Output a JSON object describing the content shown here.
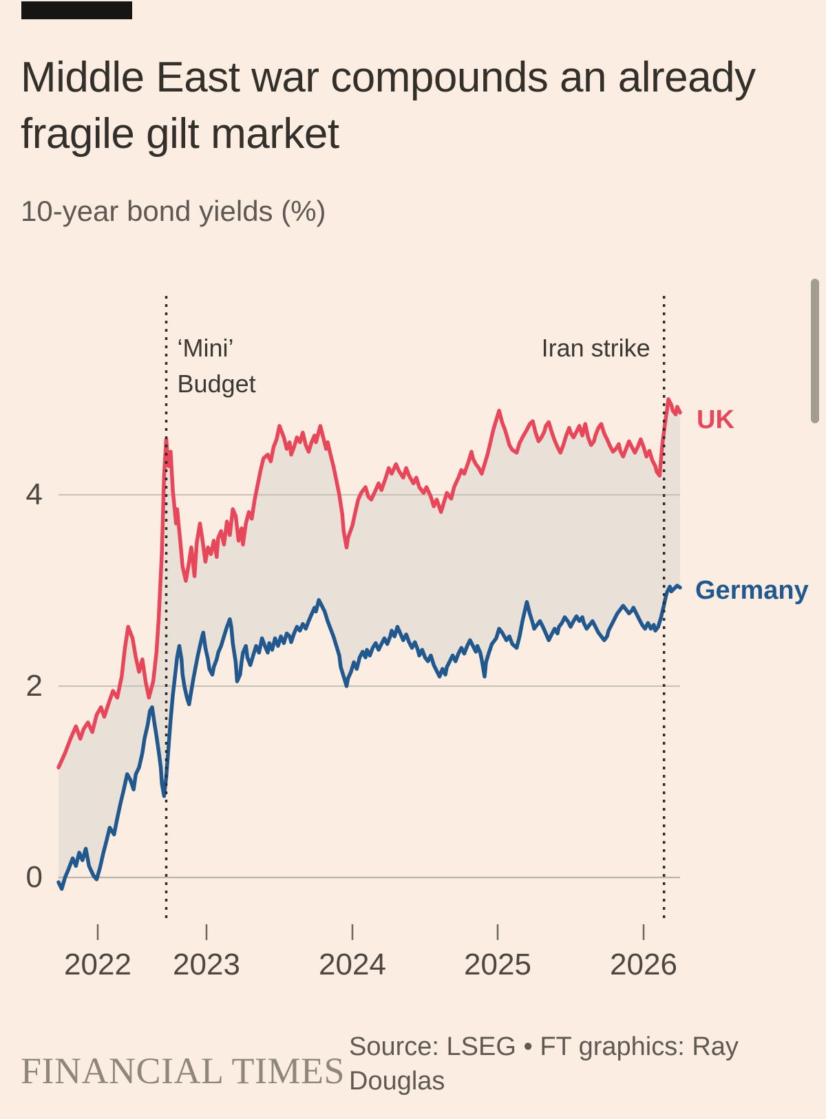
{
  "window": {
    "background": "#FBEDE1",
    "top_bar_color": "#171514",
    "scrollbar_color": "#A39C90"
  },
  "header": {
    "title": "Middle East war compounds an already fragile gilt market",
    "subtitle": "10-year bond yields (%)"
  },
  "footer": {
    "brand": "FINANCIAL TIMES",
    "source": "Source: LSEG • FT graphics: Ray Douglas"
  },
  "chart_data": {
    "type": "line",
    "title": "Middle East war compounds an already fragile gilt market",
    "subtitle": "10-year bond yields (%)",
    "xlabel": "",
    "ylabel": "10-year bond yield (%)",
    "x_axis": {
      "ticks": [
        2022,
        2023,
        2024,
        2025,
        2026
      ],
      "range": [
        2021.64,
        2026.25
      ]
    },
    "y_axis": {
      "ticks": [
        0,
        2,
        4
      ],
      "range": [
        -0.45,
        5.45
      ],
      "unit": "%"
    },
    "grid": "horizontal",
    "legend_position": "right-of-line-ends",
    "fill_between": {
      "upper": "UK",
      "lower": "Germany",
      "color": "#E9E1D7"
    },
    "annotations": [
      {
        "label": "‘Mini’ Budget",
        "x": 2022.63,
        "line_style": "dotted"
      },
      {
        "label": "Iran strike",
        "x": 2026.14,
        "line_style": "dotted"
      }
    ],
    "series": [
      {
        "name": "UK",
        "color": "#E8465A",
        "x": [
          2021.64,
          2021.7,
          2021.75,
          2021.8,
          2021.84,
          2021.87,
          2021.91,
          2021.95,
          2021.99,
          2022.03,
          2022.06,
          2022.1,
          2022.14,
          2022.18,
          2022.22,
          2022.25,
          2022.28,
          2022.32,
          2022.35,
          2022.38,
          2022.41,
          2022.44,
          2022.47,
          2022.51,
          2022.54,
          2022.56,
          2022.59,
          2022.61,
          2022.63,
          2022.65,
          2022.67,
          2022.69,
          2022.72,
          2022.73,
          2022.76,
          2022.78,
          2022.81,
          2022.84,
          2022.86,
          2022.89,
          2022.91,
          2022.94,
          2022.96,
          2022.99,
          2023.01,
          2023.03,
          2023.05,
          2023.07,
          2023.08,
          2023.1,
          2023.12,
          2023.14,
          2023.16,
          2023.18,
          2023.2,
          2023.22,
          2023.24,
          2023.25,
          2023.27,
          2023.29,
          2023.31,
          2023.33,
          2023.35,
          2023.37,
          2023.39,
          2023.42,
          2023.44,
          2023.46,
          2023.48,
          2023.5,
          2023.53,
          2023.55,
          2023.57,
          2023.58,
          2023.6,
          2023.62,
          2023.64,
          2023.66,
          2023.68,
          2023.7,
          2023.72,
          2023.74,
          2023.75,
          2023.78,
          2023.8,
          2023.82,
          2023.83,
          2023.85,
          2023.87,
          2023.89,
          2023.91,
          2023.93,
          2023.94,
          2023.96,
          2023.97,
          2024.0,
          2024.02,
          2024.04,
          2024.06,
          2024.09,
          2024.11,
          2024.13,
          2024.16,
          2024.18,
          2024.2,
          2024.23,
          2024.25,
          2024.27,
          2024.3,
          2024.32,
          2024.35,
          2024.37,
          2024.39,
          2024.42,
          2024.44,
          2024.46,
          2024.49,
          2024.51,
          2024.54,
          2024.56,
          2024.58,
          2024.61,
          2024.63,
          2024.65,
          2024.68,
          2024.7,
          2024.73,
          2024.75,
          2024.77,
          2024.8,
          2024.82,
          2024.83,
          2024.85,
          2024.87,
          2024.89,
          2024.91,
          2024.93,
          2024.95,
          2024.97,
          2024.99,
          2025.01,
          2025.03,
          2025.05,
          2025.07,
          2025.08,
          2025.1,
          2025.13,
          2025.15,
          2025.17,
          2025.2,
          2025.22,
          2025.24,
          2025.26,
          2025.28,
          2025.3,
          2025.32,
          2025.33,
          2025.35,
          2025.37,
          2025.39,
          2025.41,
          2025.43,
          2025.45,
          2025.47,
          2025.49,
          2025.5,
          2025.52,
          2025.54,
          2025.56,
          2025.58,
          2025.6,
          2025.62,
          2025.64,
          2025.66,
          2025.67,
          2025.69,
          2025.71,
          2025.73,
          2025.75,
          2025.77,
          2025.79,
          2025.81,
          2025.83,
          2025.84,
          2025.86,
          2025.88,
          2025.9,
          2025.92,
          2025.94,
          2025.96,
          2025.98,
          2026.0,
          2026.02,
          2026.04,
          2026.06,
          2026.08,
          2026.09,
          2026.11,
          2026.12,
          2026.13,
          2026.15,
          2026.16,
          2026.17,
          2026.19,
          2026.2,
          2026.22,
          2026.23,
          2026.25
        ],
        "values": [
          1.15,
          1.3,
          1.45,
          1.58,
          1.45,
          1.55,
          1.62,
          1.52,
          1.7,
          1.78,
          1.68,
          1.82,
          1.95,
          1.88,
          2.1,
          2.4,
          2.62,
          2.5,
          2.3,
          2.15,
          2.28,
          2.05,
          1.88,
          2.05,
          2.35,
          2.7,
          3.4,
          4.2,
          4.58,
          4.3,
          4.45,
          4.05,
          3.7,
          3.85,
          3.5,
          3.25,
          3.1,
          3.3,
          3.45,
          3.15,
          3.5,
          3.7,
          3.55,
          3.3,
          3.45,
          3.38,
          3.52,
          3.35,
          3.55,
          3.62,
          3.48,
          3.72,
          3.58,
          3.85,
          3.78,
          3.52,
          3.65,
          3.48,
          3.7,
          3.82,
          3.75,
          3.95,
          4.1,
          4.25,
          4.38,
          4.42,
          4.35,
          4.5,
          4.58,
          4.72,
          4.6,
          4.48,
          4.55,
          4.42,
          4.5,
          4.6,
          4.55,
          4.65,
          4.52,
          4.45,
          4.55,
          4.62,
          4.55,
          4.72,
          4.6,
          4.48,
          4.55,
          4.42,
          4.3,
          4.15,
          4.0,
          3.8,
          3.62,
          3.45,
          3.55,
          3.68,
          3.82,
          3.95,
          4.02,
          4.08,
          3.98,
          3.95,
          4.05,
          4.12,
          4.05,
          4.18,
          4.28,
          4.22,
          4.32,
          4.25,
          4.18,
          4.28,
          4.2,
          4.12,
          4.18,
          4.08,
          4.02,
          4.08,
          3.98,
          3.88,
          3.95,
          3.82,
          3.92,
          4.02,
          3.96,
          4.08,
          4.18,
          4.26,
          4.22,
          4.35,
          4.45,
          4.38,
          4.32,
          4.28,
          4.22,
          4.32,
          4.42,
          4.55,
          4.68,
          4.78,
          4.88,
          4.76,
          4.68,
          4.58,
          4.52,
          4.47,
          4.44,
          4.54,
          4.6,
          4.68,
          4.74,
          4.77,
          4.65,
          4.56,
          4.6,
          4.66,
          4.72,
          4.76,
          4.66,
          4.57,
          4.5,
          4.44,
          4.52,
          4.62,
          4.7,
          4.65,
          4.6,
          4.66,
          4.72,
          4.62,
          4.74,
          4.6,
          4.52,
          4.56,
          4.62,
          4.7,
          4.74,
          4.64,
          4.58,
          4.51,
          4.45,
          4.48,
          4.53,
          4.46,
          4.4,
          4.48,
          4.56,
          4.5,
          4.44,
          4.5,
          4.58,
          4.5,
          4.4,
          4.46,
          4.36,
          4.3,
          4.24,
          4.2,
          4.38,
          4.55,
          4.78,
          4.88,
          5.0,
          4.94,
          4.88,
          4.84,
          4.92,
          4.86
        ]
      },
      {
        "name": "Germany",
        "color": "#21588E",
        "x": [
          2021.64,
          2021.67,
          2021.7,
          2021.73,
          2021.77,
          2021.8,
          2021.83,
          2021.86,
          2021.89,
          2021.92,
          2021.96,
          2021.99,
          2022.02,
          2022.05,
          2022.08,
          2022.11,
          2022.15,
          2022.18,
          2022.21,
          2022.24,
          2022.27,
          2022.3,
          2022.33,
          2022.35,
          2022.38,
          2022.41,
          2022.43,
          2022.46,
          2022.48,
          2022.5,
          2022.52,
          2022.54,
          2022.56,
          2022.58,
          2022.59,
          2022.61,
          2022.63,
          2022.65,
          2022.67,
          2022.69,
          2022.71,
          2022.73,
          2022.75,
          2022.77,
          2022.78,
          2022.8,
          2022.82,
          2022.84,
          2022.86,
          2022.88,
          2022.9,
          2022.92,
          2022.94,
          2022.96,
          2022.97,
          2022.99,
          2023.01,
          2023.02,
          2023.04,
          2023.05,
          2023.07,
          2023.08,
          2023.1,
          2023.12,
          2023.14,
          2023.16,
          2023.17,
          2023.18,
          2023.2,
          2023.21,
          2023.23,
          2023.24,
          2023.25,
          2023.27,
          2023.28,
          2023.3,
          2023.32,
          2023.34,
          2023.36,
          2023.38,
          2023.4,
          2023.42,
          2023.43,
          2023.45,
          2023.47,
          2023.49,
          2023.51,
          2023.53,
          2023.55,
          2023.57,
          2023.58,
          2023.6,
          2023.62,
          2023.64,
          2023.66,
          2023.68,
          2023.7,
          2023.72,
          2023.74,
          2023.75,
          2023.77,
          2023.79,
          2023.81,
          2023.83,
          2023.85,
          2023.87,
          2023.89,
          2023.91,
          2023.92,
          2023.94,
          2023.96,
          2023.97,
          2023.99,
          2024.01,
          2024.03,
          2024.05,
          2024.07,
          2024.09,
          2024.1,
          2024.12,
          2024.14,
          2024.16,
          2024.18,
          2024.2,
          2024.22,
          2024.24,
          2024.26,
          2024.27,
          2024.29,
          2024.31,
          2024.33,
          2024.35,
          2024.37,
          2024.39,
          2024.41,
          2024.43,
          2024.45,
          2024.46,
          2024.48,
          2024.5,
          2024.52,
          2024.54,
          2024.56,
          2024.58,
          2024.6,
          2024.62,
          2024.64,
          2024.65,
          2024.67,
          2024.69,
          2024.71,
          2024.73,
          2024.75,
          2024.77,
          2024.79,
          2024.81,
          2024.83,
          2024.85,
          2024.86,
          2024.88,
          2024.89,
          2024.91,
          2024.92,
          2024.94,
          2024.96,
          2024.99,
          2025.01,
          2025.03,
          2025.06,
          2025.08,
          2025.1,
          2025.13,
          2025.15,
          2025.17,
          2025.2,
          2025.22,
          2025.24,
          2025.25,
          2025.27,
          2025.29,
          2025.31,
          2025.33,
          2025.35,
          2025.37,
          2025.39,
          2025.41,
          2025.42,
          2025.44,
          2025.46,
          2025.48,
          2025.5,
          2025.52,
          2025.54,
          2025.56,
          2025.58,
          2025.59,
          2025.61,
          2025.63,
          2025.65,
          2025.67,
          2025.69,
          2025.71,
          2025.73,
          2025.75,
          2025.76,
          2025.78,
          2025.8,
          2025.82,
          2025.84,
          2025.86,
          2025.88,
          2025.9,
          2025.92,
          2025.93,
          2025.95,
          2025.97,
          2025.99,
          2026.01,
          2026.03,
          2026.05,
          2026.07,
          2026.08,
          2026.1,
          2026.12,
          2026.14,
          2026.15,
          2026.16,
          2026.18,
          2026.19,
          2026.21,
          2026.23,
          2026.25
        ],
        "values": [
          -0.05,
          -0.12,
          0.0,
          0.08,
          0.2,
          0.12,
          0.26,
          0.18,
          0.3,
          0.12,
          0.02,
          -0.02,
          0.1,
          0.25,
          0.38,
          0.52,
          0.45,
          0.62,
          0.78,
          0.92,
          1.08,
          1.02,
          0.92,
          1.08,
          1.15,
          1.3,
          1.45,
          1.6,
          1.74,
          1.78,
          1.62,
          1.48,
          1.32,
          1.15,
          0.98,
          0.85,
          1.05,
          1.35,
          1.65,
          1.9,
          2.1,
          2.3,
          2.42,
          2.28,
          2.12,
          1.98,
          1.88,
          1.81,
          1.95,
          2.08,
          2.2,
          2.32,
          2.42,
          2.52,
          2.56,
          2.4,
          2.28,
          2.18,
          2.12,
          2.2,
          2.28,
          2.35,
          2.42,
          2.52,
          2.62,
          2.7,
          2.62,
          2.45,
          2.25,
          2.05,
          2.12,
          2.25,
          2.35,
          2.42,
          2.3,
          2.22,
          2.32,
          2.42,
          2.35,
          2.5,
          2.42,
          2.35,
          2.45,
          2.38,
          2.5,
          2.42,
          2.52,
          2.45,
          2.55,
          2.52,
          2.46,
          2.55,
          2.62,
          2.58,
          2.65,
          2.6,
          2.68,
          2.75,
          2.82,
          2.78,
          2.9,
          2.84,
          2.78,
          2.68,
          2.6,
          2.52,
          2.42,
          2.32,
          2.2,
          2.1,
          2.0,
          2.08,
          2.15,
          2.25,
          2.18,
          2.3,
          2.36,
          2.3,
          2.38,
          2.32,
          2.4,
          2.45,
          2.38,
          2.44,
          2.5,
          2.44,
          2.52,
          2.58,
          2.52,
          2.62,
          2.55,
          2.48,
          2.54,
          2.46,
          2.4,
          2.46,
          2.38,
          2.32,
          2.38,
          2.3,
          2.26,
          2.32,
          2.22,
          2.16,
          2.1,
          2.18,
          2.12,
          2.2,
          2.26,
          2.32,
          2.26,
          2.34,
          2.4,
          2.34,
          2.42,
          2.48,
          2.42,
          2.36,
          2.42,
          2.35,
          2.28,
          2.1,
          2.25,
          2.35,
          2.44,
          2.5,
          2.6,
          2.56,
          2.48,
          2.52,
          2.44,
          2.4,
          2.52,
          2.68,
          2.88,
          2.76,
          2.66,
          2.6,
          2.64,
          2.68,
          2.62,
          2.55,
          2.48,
          2.54,
          2.6,
          2.55,
          2.62,
          2.66,
          2.72,
          2.68,
          2.62,
          2.68,
          2.73,
          2.68,
          2.72,
          2.66,
          2.6,
          2.64,
          2.68,
          2.62,
          2.56,
          2.52,
          2.48,
          2.52,
          2.58,
          2.64,
          2.7,
          2.76,
          2.8,
          2.84,
          2.8,
          2.76,
          2.79,
          2.82,
          2.76,
          2.7,
          2.64,
          2.6,
          2.66,
          2.6,
          2.64,
          2.58,
          2.62,
          2.72,
          2.85,
          2.92,
          2.98,
          3.04,
          2.99,
          3.02,
          3.05,
          3.03
        ]
      }
    ],
    "source": "Source: LSEG • FT graphics: Ray Douglas"
  }
}
